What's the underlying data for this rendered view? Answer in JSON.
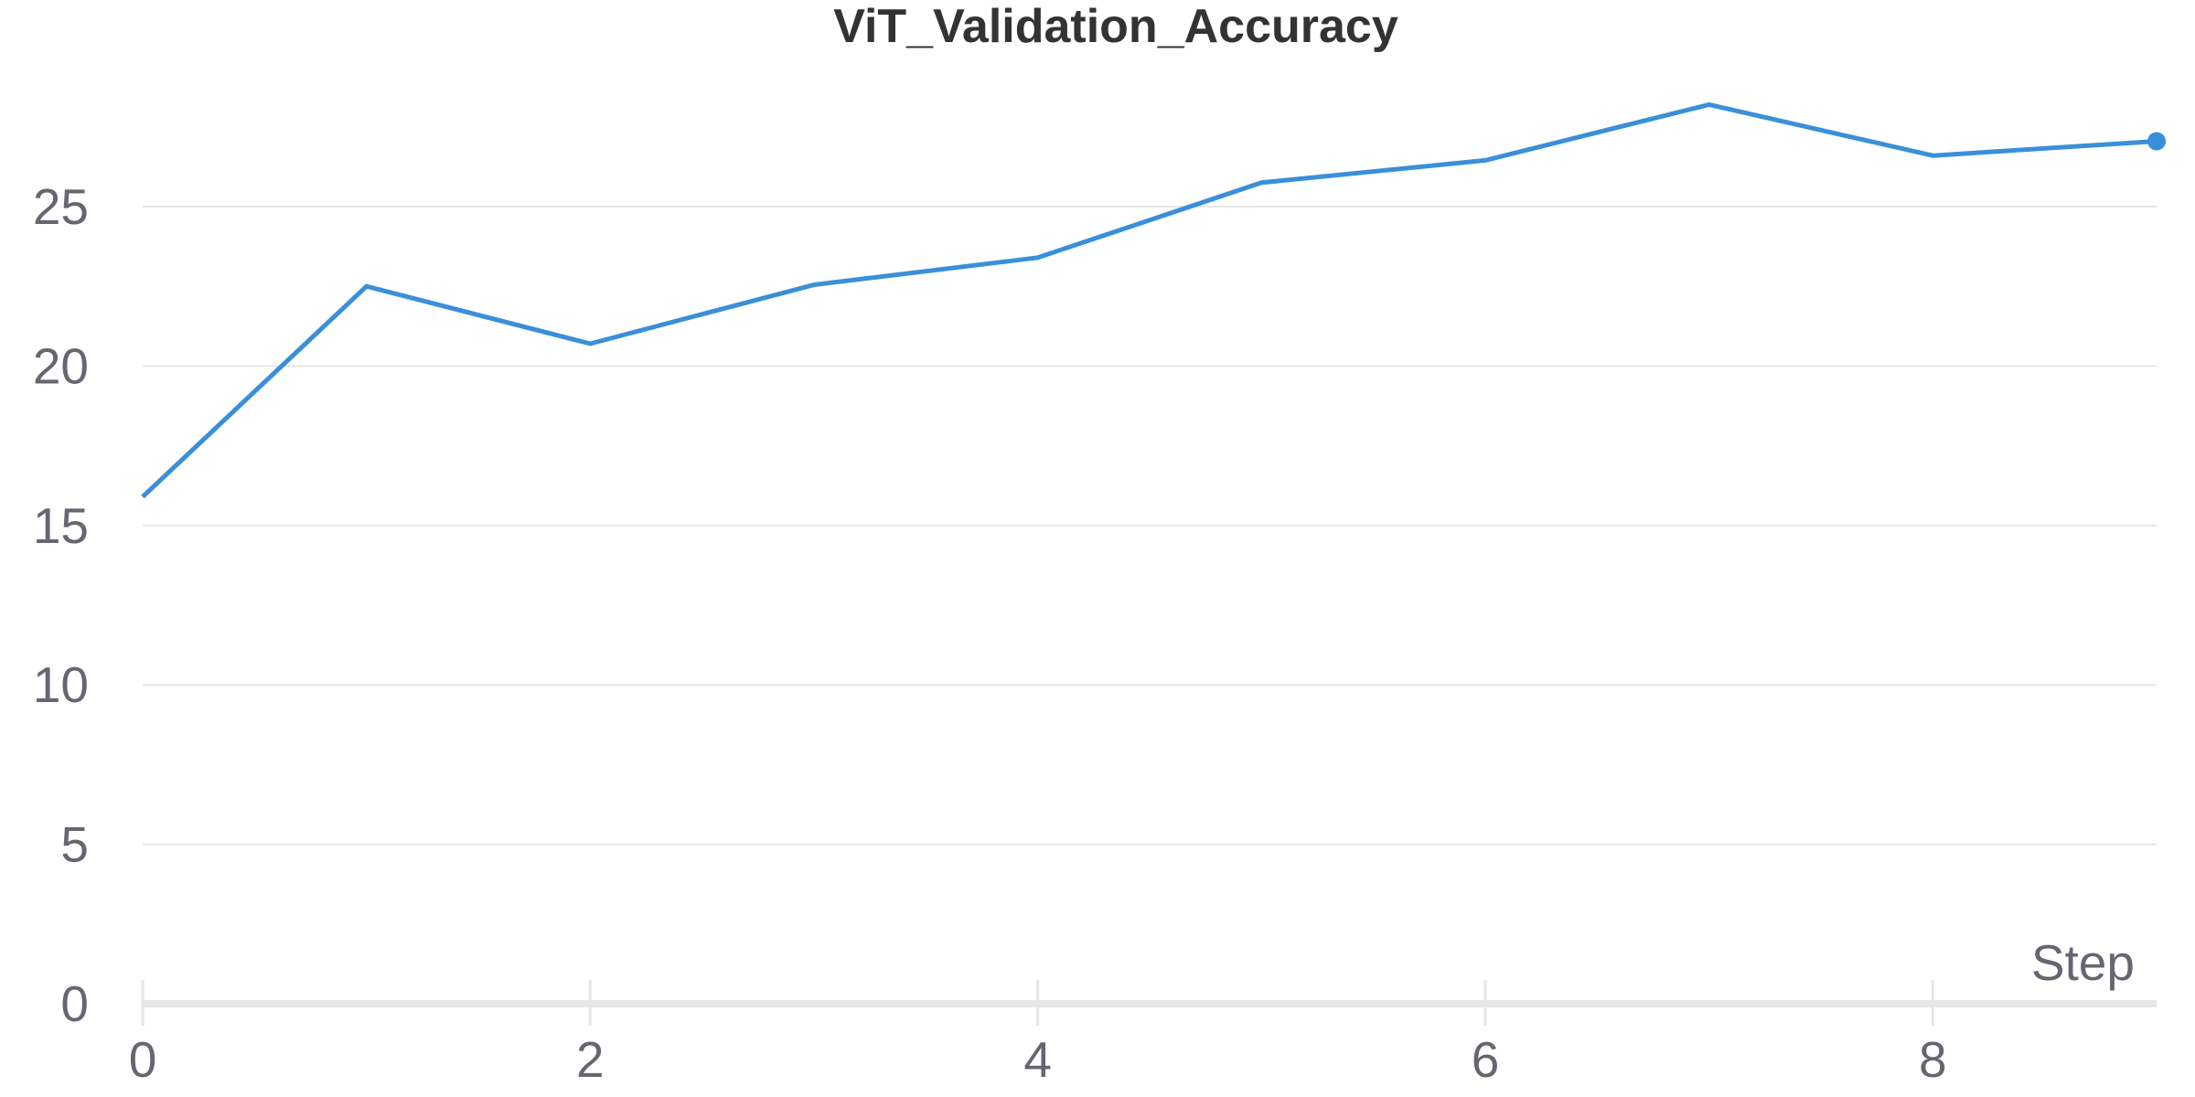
{
  "chart_data": {
    "type": "line",
    "title": "ViT_Validation_Accuracy",
    "xlabel": "Step",
    "ylabel": "",
    "x": [
      0,
      1,
      2,
      3,
      4,
      5,
      6,
      7,
      8,
      9
    ],
    "series": [
      {
        "values": [
          15.9,
          22.5,
          20.7,
          22.55,
          23.4,
          25.75,
          26.45,
          28.2,
          26.6,
          27.05
        ],
        "color": "#3a8fd9"
      }
    ],
    "xlim": [
      0,
      9
    ],
    "ylim": [
      0,
      28.2
    ],
    "xticks": [
      "0",
      "2",
      "4",
      "6",
      "8"
    ],
    "yticks": [
      "0",
      "5",
      "10",
      "15",
      "20",
      "25"
    ],
    "grid": true,
    "legend": "none",
    "last_point_marker": true
  }
}
